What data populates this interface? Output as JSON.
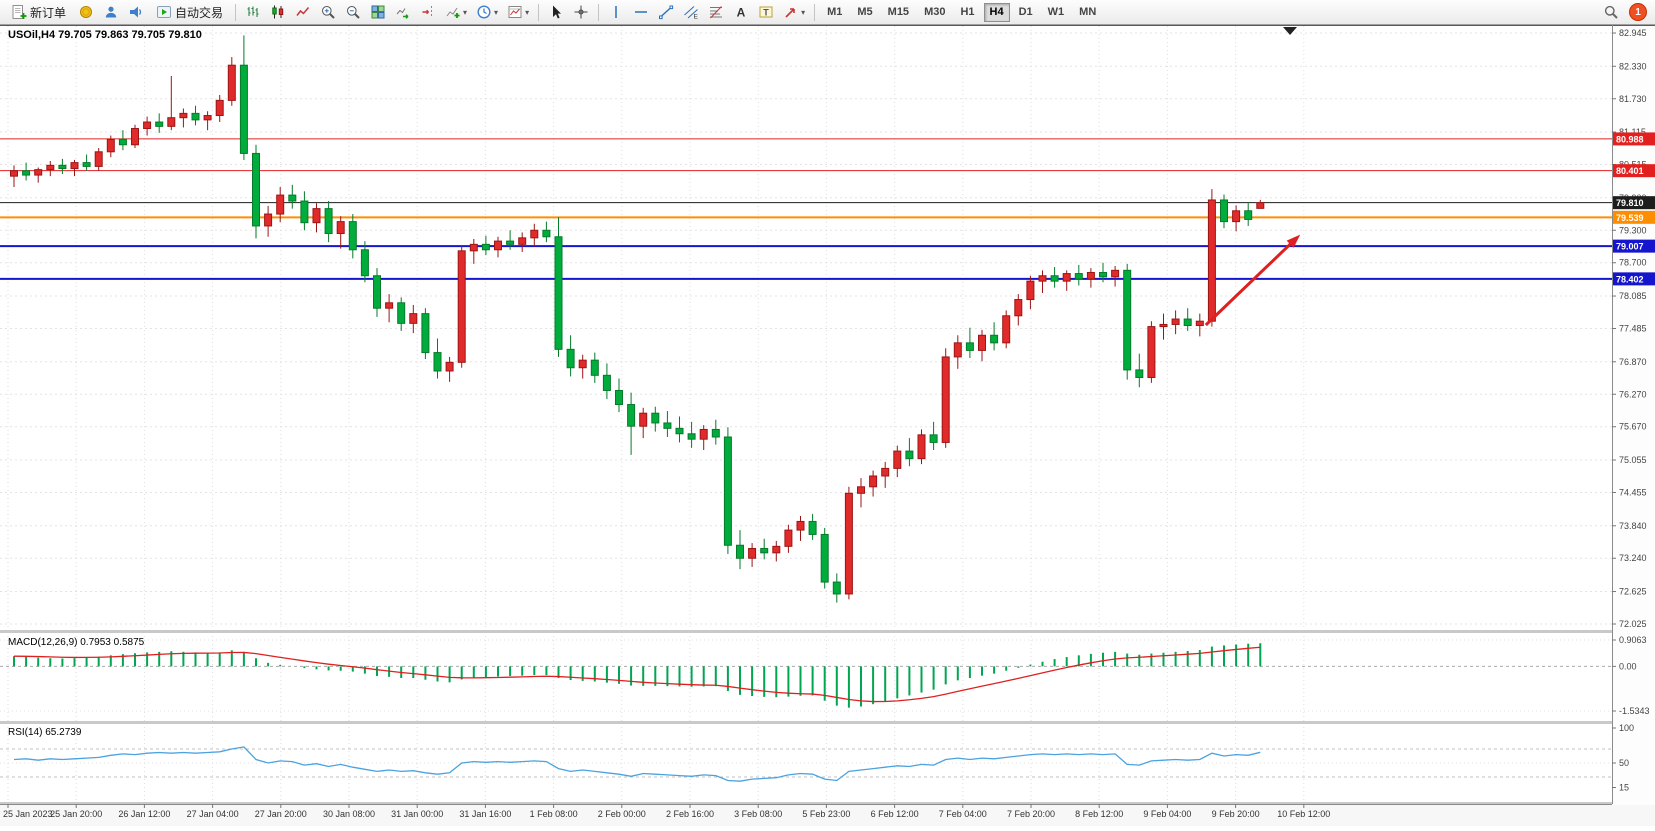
{
  "toolbar": {
    "new_order_label": "新订单",
    "autotrading_label": "自动交易",
    "notification_count": "1",
    "timeframes": [
      "M1",
      "M5",
      "M15",
      "M30",
      "H1",
      "H4",
      "D1",
      "W1",
      "MN"
    ],
    "active_timeframe": "H4",
    "groups": [
      {
        "type": "labeled",
        "name": "new-order-button",
        "icon": "new-order-icon",
        "label": "新订单"
      },
      {
        "type": "icons",
        "items": [
          "accounts-icon",
          "profile-icon",
          "alerts-icon"
        ]
      },
      {
        "type": "labeled",
        "name": "autotrading-button",
        "icon": "autotrading-icon",
        "label": "自动交易"
      },
      {
        "type": "sep"
      },
      {
        "type": "icons",
        "items": [
          "bar-chart-icon",
          "candlestick-chart-icon",
          "line-chart-icon"
        ]
      },
      {
        "type": "icons",
        "items": [
          "zoom-in-icon",
          "zoom-out-icon"
        ]
      },
      {
        "type": "icons",
        "items": [
          "tile-windows-icon"
        ]
      },
      {
        "type": "icons",
        "items": [
          "auto-scroll-icon",
          "chart-shift-icon"
        ]
      },
      {
        "type": "icons",
        "items": [
          "indicators-icon",
          "periods-icon",
          "templates-icon"
        ],
        "caret": true
      },
      {
        "type": "sep"
      },
      {
        "type": "icons",
        "items": [
          "cursor-icon",
          "crosshair-icon"
        ]
      },
      {
        "type": "sep"
      },
      {
        "type": "icons",
        "items": [
          "vertical-line-icon",
          "horizontal-line-icon",
          "trendline-icon",
          "equidistant-channel-icon",
          "fibonacci-icon",
          "text-icon",
          "text-label-icon"
        ]
      },
      {
        "type": "icons",
        "items": [
          "arrows-icon"
        ],
        "caret": true
      },
      {
        "type": "sep"
      },
      {
        "type": "timeframes"
      }
    ]
  },
  "chart": {
    "title": "USOil,H4 79.705 79.863 79.705 79.810",
    "symbol": "USOil",
    "timeframe": "H4",
    "open": "79.705",
    "high": "79.863",
    "low": "79.705",
    "close": "79.810"
  },
  "chart_data": {
    "type": "candlestick",
    "symbol": "USOil",
    "timeframe": "H4",
    "price_axis_ticks": [
      "82.945",
      "82.330",
      "81.730",
      "81.115",
      "80.515",
      "79.900",
      "79.300",
      "78.700",
      "78.085",
      "77.485",
      "76.870",
      "76.270",
      "75.670",
      "75.055",
      "74.455",
      "73.840",
      "73.240",
      "72.625",
      "72.025"
    ],
    "time_labels": [
      "25 Jan 2023",
      "25 Jan 20:00",
      "26 Jan 12:00",
      "27 Jan 04:00",
      "27 Jan 20:00",
      "30 Jan 08:00",
      "31 Jan 00:00",
      "31 Jan 16:00",
      "1 Feb 08:00",
      "2 Feb 00:00",
      "2 Feb 16:00",
      "3 Feb 08:00",
      "5 Feb 23:00",
      "6 Feb 12:00",
      "7 Feb 04:00",
      "7 Feb 20:00",
      "8 Feb 12:00",
      "9 Feb 04:00",
      "9 Feb 20:00",
      "10 Feb 12:00"
    ],
    "candles": [
      [
        80.3,
        80.5,
        80.1,
        80.4
      ],
      [
        80.4,
        80.55,
        80.22,
        80.32
      ],
      [
        80.32,
        80.46,
        80.18,
        80.42
      ],
      [
        80.42,
        80.58,
        80.3,
        80.5
      ],
      [
        80.5,
        80.62,
        80.34,
        80.44
      ],
      [
        80.44,
        80.6,
        80.3,
        80.55
      ],
      [
        80.55,
        80.7,
        80.4,
        80.48
      ],
      [
        80.48,
        80.82,
        80.4,
        80.75
      ],
      [
        80.75,
        81.05,
        80.65,
        80.98
      ],
      [
        80.98,
        81.15,
        80.78,
        80.88
      ],
      [
        80.88,
        81.25,
        80.82,
        81.18
      ],
      [
        81.18,
        81.4,
        81.05,
        81.3
      ],
      [
        81.3,
        81.46,
        81.1,
        81.22
      ],
      [
        81.22,
        82.15,
        81.15,
        81.38
      ],
      [
        81.38,
        81.55,
        81.2,
        81.46
      ],
      [
        81.46,
        81.6,
        81.24,
        81.34
      ],
      [
        81.34,
        81.5,
        81.15,
        81.42
      ],
      [
        81.42,
        81.8,
        81.3,
        81.7
      ],
      [
        81.7,
        82.5,
        81.6,
        82.35
      ],
      [
        82.35,
        82.9,
        80.6,
        80.72
      ],
      [
        80.72,
        80.88,
        79.15,
        79.38
      ],
      [
        79.38,
        79.75,
        79.18,
        79.6
      ],
      [
        79.6,
        80.1,
        79.45,
        79.95
      ],
      [
        79.95,
        80.14,
        79.7,
        79.84
      ],
      [
        79.84,
        80.02,
        79.3,
        79.44
      ],
      [
        79.44,
        79.8,
        79.26,
        79.7
      ],
      [
        79.7,
        79.84,
        79.08,
        79.24
      ],
      [
        79.24,
        79.56,
        78.96,
        79.46
      ],
      [
        79.46,
        79.6,
        78.78,
        78.94
      ],
      [
        78.94,
        79.1,
        78.34,
        78.46
      ],
      [
        78.46,
        78.6,
        77.7,
        77.86
      ],
      [
        77.86,
        78.12,
        77.6,
        77.96
      ],
      [
        77.96,
        78.06,
        77.44,
        77.58
      ],
      [
        77.58,
        77.92,
        77.4,
        77.76
      ],
      [
        77.76,
        77.86,
        76.92,
        77.04
      ],
      [
        77.04,
        77.3,
        76.56,
        76.7
      ],
      [
        76.7,
        76.96,
        76.5,
        76.86
      ],
      [
        76.86,
        79.02,
        76.76,
        78.92
      ],
      [
        78.92,
        79.14,
        78.68,
        79.04
      ],
      [
        79.04,
        79.2,
        78.84,
        78.94
      ],
      [
        78.94,
        79.18,
        78.8,
        79.1
      ],
      [
        79.1,
        79.3,
        78.94,
        79.04
      ],
      [
        79.04,
        79.26,
        78.9,
        79.16
      ],
      [
        79.16,
        79.42,
        79.0,
        79.3
      ],
      [
        79.3,
        79.46,
        79.08,
        79.18
      ],
      [
        79.18,
        79.54,
        76.96,
        77.1
      ],
      [
        77.1,
        77.36,
        76.6,
        76.76
      ],
      [
        76.76,
        77.0,
        76.56,
        76.9
      ],
      [
        76.9,
        77.04,
        76.48,
        76.62
      ],
      [
        76.62,
        76.84,
        76.18,
        76.34
      ],
      [
        76.34,
        76.56,
        75.94,
        76.08
      ],
      [
        76.08,
        76.3,
        75.15,
        75.68
      ],
      [
        75.68,
        76.02,
        75.46,
        75.92
      ],
      [
        75.92,
        76.04,
        75.58,
        75.74
      ],
      [
        75.74,
        75.96,
        75.48,
        75.64
      ],
      [
        75.64,
        75.86,
        75.38,
        75.54
      ],
      [
        75.54,
        75.76,
        75.28,
        75.44
      ],
      [
        75.44,
        75.7,
        75.24,
        75.62
      ],
      [
        75.62,
        75.8,
        75.34,
        75.48
      ],
      [
        75.48,
        75.66,
        73.32,
        73.48
      ],
      [
        73.48,
        73.76,
        73.04,
        73.24
      ],
      [
        73.24,
        73.52,
        73.08,
        73.42
      ],
      [
        73.42,
        73.6,
        73.22,
        73.34
      ],
      [
        73.34,
        73.56,
        73.18,
        73.46
      ],
      [
        73.46,
        73.86,
        73.34,
        73.76
      ],
      [
        73.76,
        74.02,
        73.56,
        73.92
      ],
      [
        73.92,
        74.06,
        73.58,
        73.68
      ],
      [
        73.68,
        73.8,
        72.68,
        72.8
      ],
      [
        72.8,
        72.96,
        72.42,
        72.58
      ],
      [
        72.58,
        74.56,
        72.48,
        74.44
      ],
      [
        74.44,
        74.72,
        74.18,
        74.56
      ],
      [
        74.56,
        74.86,
        74.38,
        74.76
      ],
      [
        74.76,
        75.02,
        74.54,
        74.9
      ],
      [
        74.9,
        75.32,
        74.74,
        75.22
      ],
      [
        75.22,
        75.46,
        74.94,
        75.08
      ],
      [
        75.08,
        75.62,
        74.98,
        75.52
      ],
      [
        75.52,
        75.76,
        75.24,
        75.38
      ],
      [
        75.38,
        77.12,
        75.28,
        76.96
      ],
      [
        76.96,
        77.36,
        76.74,
        77.22
      ],
      [
        77.22,
        77.5,
        76.94,
        77.08
      ],
      [
        77.08,
        77.46,
        76.88,
        77.36
      ],
      [
        77.36,
        77.6,
        77.08,
        77.22
      ],
      [
        77.22,
        77.82,
        77.12,
        77.72
      ],
      [
        77.72,
        78.12,
        77.54,
        78.02
      ],
      [
        78.02,
        78.46,
        77.84,
        78.36
      ],
      [
        78.36,
        78.56,
        78.14,
        78.46
      ],
      [
        78.46,
        78.62,
        78.24,
        78.36
      ],
      [
        78.36,
        78.56,
        78.18,
        78.5
      ],
      [
        78.5,
        78.66,
        78.28,
        78.4
      ],
      [
        78.4,
        78.6,
        78.24,
        78.52
      ],
      [
        78.52,
        78.7,
        78.34,
        78.44
      ],
      [
        78.44,
        78.64,
        78.26,
        78.56
      ],
      [
        78.56,
        78.68,
        76.54,
        76.72
      ],
      [
        76.72,
        77.02,
        76.4,
        76.58
      ],
      [
        76.58,
        77.62,
        76.48,
        77.52
      ],
      [
        77.52,
        77.76,
        77.28,
        77.56
      ],
      [
        77.56,
        77.82,
        77.38,
        77.66
      ],
      [
        77.66,
        77.86,
        77.44,
        77.54
      ],
      [
        77.54,
        77.76,
        77.34,
        77.62
      ],
      [
        77.62,
        80.06,
        77.52,
        79.86
      ],
      [
        79.86,
        79.96,
        79.34,
        79.46
      ],
      [
        79.46,
        79.76,
        79.28,
        79.66
      ],
      [
        79.66,
        79.82,
        79.38,
        79.5
      ],
      [
        79.705,
        79.863,
        79.705,
        79.81
      ]
    ],
    "levels": [
      {
        "label": "80.988",
        "value": 80.988,
        "color": "#e22020",
        "width": 1
      },
      {
        "label": "80.401",
        "value": 80.401,
        "color": "#e22020",
        "width": 1
      },
      {
        "label": "79.810",
        "value": 79.81,
        "color": "#1d1d1d",
        "width": 1
      },
      {
        "label": "79.539",
        "value": 79.539,
        "color": "#ff8d00",
        "width": 2
      },
      {
        "label": "79.007",
        "value": 79.007,
        "color": "#1515cd",
        "width": 2
      },
      {
        "label": "78.402",
        "value": 78.402,
        "color": "#1515cd",
        "width": 2
      }
    ],
    "current_price": "79.810",
    "arrow_annotation": {
      "from_index": 98.5,
      "from_price": 77.55,
      "to_index": 106.3,
      "to_price": 79.22,
      "color": "#e02020",
      "width": 3
    },
    "macd": {
      "label": "MACD(12,26,9) 0.7953 0.5875",
      "name": "MACD(12,26,9)",
      "main_value": "0.7953",
      "signal_value": "0.5875",
      "axis": [
        "0.9063",
        "0.00",
        "-1.5343"
      ],
      "axis_max": 0.9063,
      "axis_min": -1.5343,
      "histogram": [
        0.35,
        0.33,
        0.3,
        0.28,
        0.27,
        0.28,
        0.31,
        0.33,
        0.38,
        0.42,
        0.45,
        0.48,
        0.5,
        0.52,
        0.5,
        0.48,
        0.46,
        0.48,
        0.55,
        0.48,
        0.28,
        0.12,
        0.05,
        0.0,
        -0.06,
        -0.1,
        -0.14,
        -0.15,
        -0.18,
        -0.25,
        -0.33,
        -0.36,
        -0.4,
        -0.4,
        -0.46,
        -0.52,
        -0.55,
        -0.45,
        -0.4,
        -0.37,
        -0.35,
        -0.33,
        -0.32,
        -0.3,
        -0.3,
        -0.4,
        -0.47,
        -0.5,
        -0.52,
        -0.56,
        -0.6,
        -0.66,
        -0.67,
        -0.67,
        -0.68,
        -0.69,
        -0.7,
        -0.69,
        -0.68,
        -0.85,
        -0.98,
        -1.02,
        -1.05,
        -1.06,
        -1.04,
        -1.01,
        -1.0,
        -1.18,
        -1.35,
        -1.42,
        -1.38,
        -1.3,
        -1.2,
        -1.1,
        -1.0,
        -0.9,
        -0.8,
        -0.62,
        -0.48,
        -0.4,
        -0.32,
        -0.25,
        -0.15,
        -0.05,
        0.06,
        0.16,
        0.25,
        0.32,
        0.38,
        0.43,
        0.47,
        0.5,
        0.44,
        0.4,
        0.44,
        0.47,
        0.5,
        0.53,
        0.56,
        0.68,
        0.72,
        0.75,
        0.78,
        0.7953
      ]
    },
    "rsi": {
      "label": "RSI(14) 65.2739",
      "name": "RSI(14)",
      "value": "65.2739",
      "axis": [
        "100",
        "50",
        "15"
      ],
      "axis_values": [
        100,
        50,
        15
      ],
      "levels": [
        70,
        30
      ],
      "series": [
        55,
        56,
        54,
        56,
        55,
        56,
        57,
        58,
        61,
        63,
        62,
        64,
        65,
        64,
        65,
        64,
        65,
        66,
        70,
        73,
        55,
        50,
        53,
        52,
        47,
        49,
        45,
        48,
        44,
        41,
        38,
        40,
        38,
        39,
        36,
        34,
        36,
        50,
        52,
        51,
        52,
        51,
        52,
        53,
        52,
        42,
        38,
        40,
        38,
        36,
        34,
        31,
        35,
        34,
        33,
        32,
        31,
        33,
        32,
        25,
        24,
        27,
        28,
        29,
        33,
        35,
        34,
        27,
        25,
        38,
        40,
        42,
        44,
        46,
        45,
        48,
        47,
        55,
        57,
        55,
        57,
        56,
        58,
        60,
        62,
        63,
        62,
        63,
        62,
        63,
        62,
        63,
        48,
        47,
        53,
        54,
        55,
        54,
        55,
        64,
        60,
        62,
        61,
        65.2739
      ]
    },
    "colors": {
      "up": "#e12b2b",
      "up_dark": "#9c1515",
      "down": "#00ad3c",
      "down_dark": "#067a2a",
      "macd_hist": "#00a650",
      "macd_signal": "#e02020",
      "rsi_line": "#4aa3e0",
      "arrow": "#e02020",
      "grid": "#dcdcdc"
    }
  }
}
